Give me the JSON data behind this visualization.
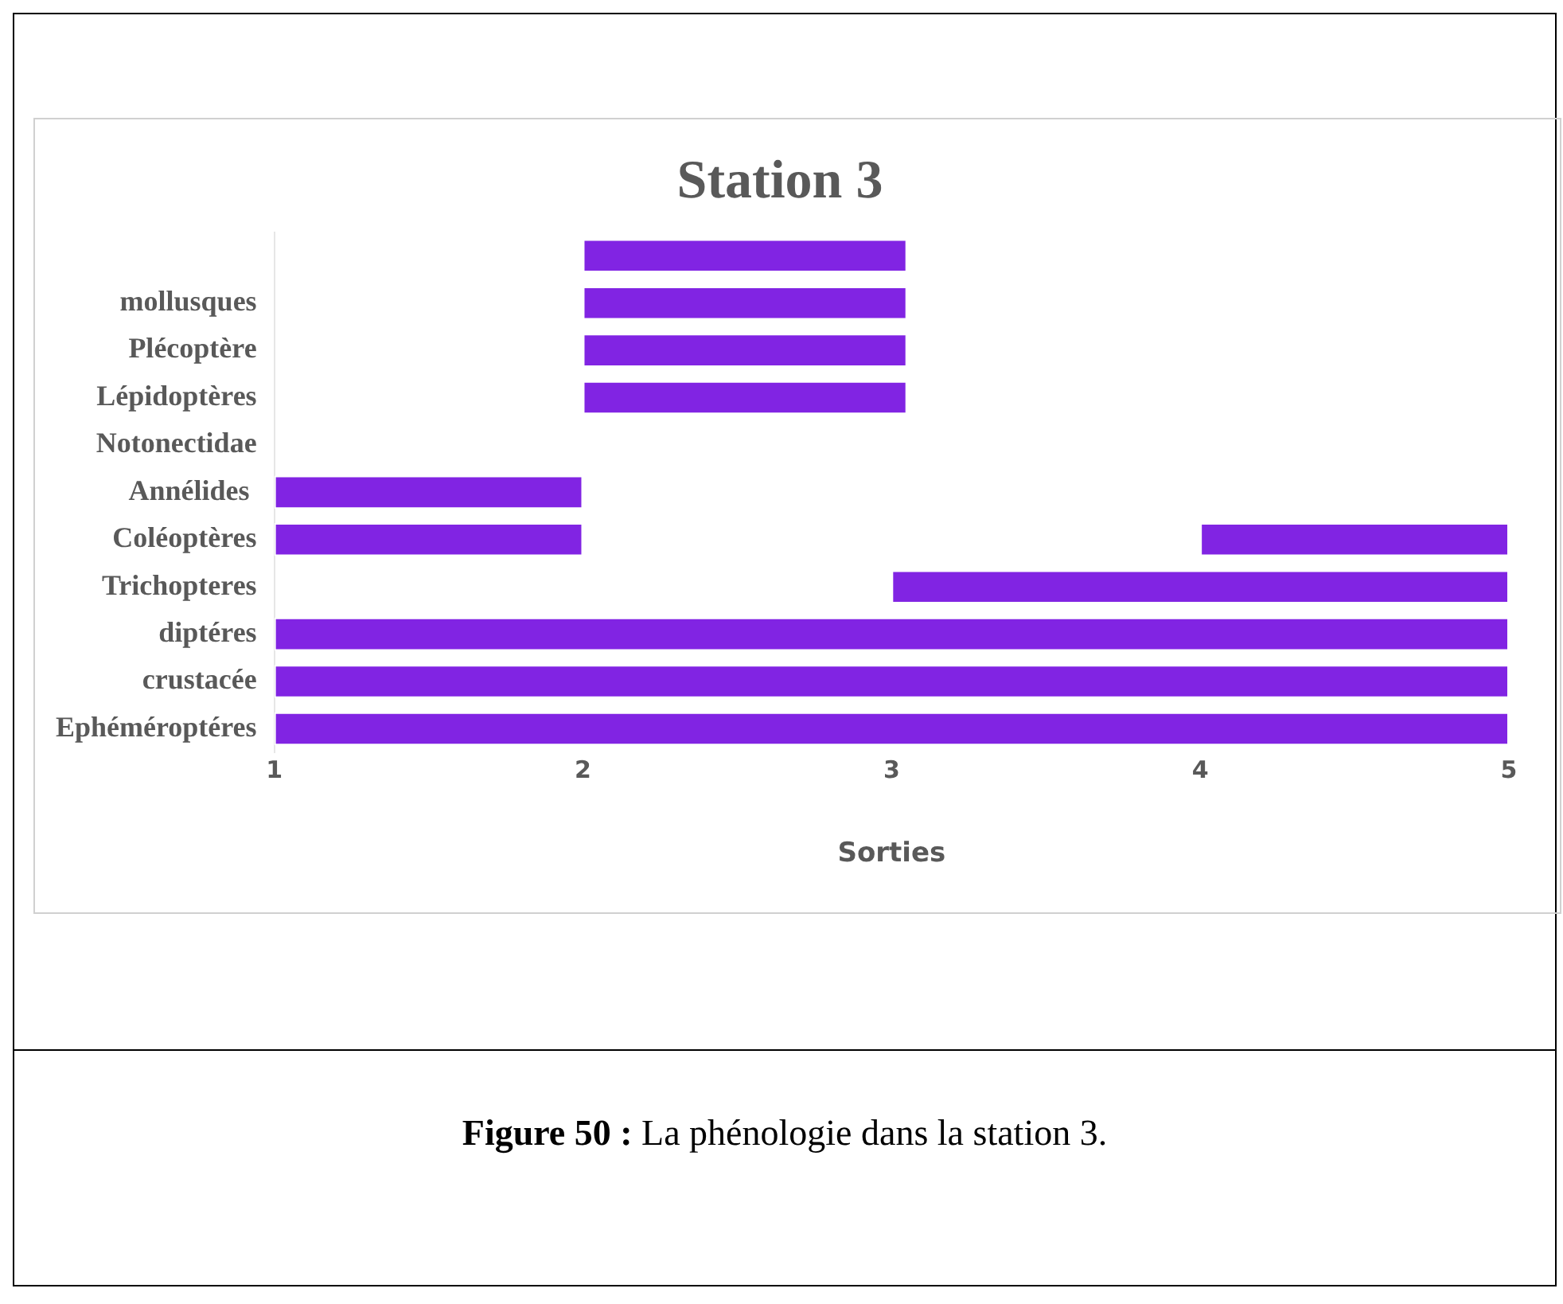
{
  "chart_data": {
    "type": "bar",
    "orientation": "horizontal",
    "title": "Station 3",
    "xlabel": "Sorties",
    "categories": [
      null,
      "mollusques",
      "Plécoptère",
      "Lépidoptères",
      "Notonectidae",
      "Annélides ",
      "Coléoptères",
      "Trichopteres",
      "diptéres",
      "crustacée",
      "Ephéméroptéres"
    ],
    "series": [
      {
        "color": "#8124e3",
        "base": [
          2,
          2,
          2,
          2,
          null,
          1,
          1,
          3,
          1,
          1,
          1
        ],
        "values": [
          1.05,
          1.05,
          1.05,
          1.05,
          null,
          1,
          1,
          2,
          4,
          4,
          4
        ]
      },
      {
        "color": "#8124e3",
        "base": [
          null,
          null,
          null,
          null,
          null,
          null,
          4,
          null,
          null,
          null,
          null
        ],
        "values": [
          null,
          null,
          null,
          null,
          null,
          null,
          1,
          null,
          null,
          null,
          null
        ]
      }
    ],
    "xlim": [
      1,
      5
    ],
    "xticks": [
      1,
      2,
      3,
      4,
      5
    ],
    "grid": false,
    "legend": false,
    "annotations": [
      "Figure 50 : La phénologie dans la station 3."
    ]
  }
}
